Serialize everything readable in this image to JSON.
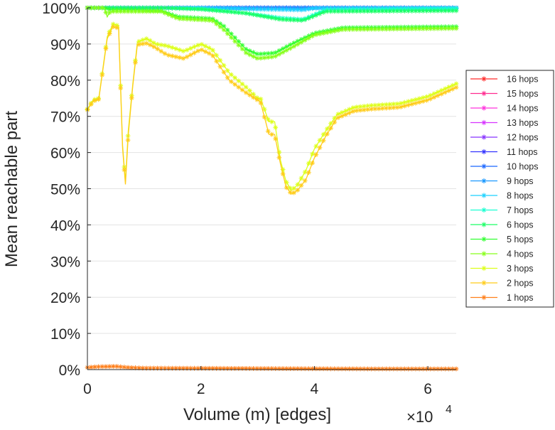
{
  "chart_data": {
    "type": "line",
    "xlabel": "Volume (m) [edges]",
    "ylabel": "Mean reachable part",
    "x_multiplier": {
      "base": "×10",
      "exponent": "4"
    },
    "xlim": [
      0,
      6.5
    ],
    "ylim": [
      0,
      100
    ],
    "x_ticks": [
      0,
      2,
      4,
      6
    ],
    "x_tick_labels": [
      "0",
      "2",
      "4",
      "6"
    ],
    "y_ticks": [
      0,
      10,
      20,
      30,
      40,
      50,
      60,
      70,
      80,
      90,
      100
    ],
    "y_tick_labels": [
      "0%",
      "10%",
      "20%",
      "30%",
      "40%",
      "50%",
      "60%",
      "70%",
      "80%",
      "90%",
      "100%"
    ],
    "grid": "horizontal",
    "legend_position": "right",
    "series": [
      {
        "name": "16 hops",
        "color": "#ff2a2a",
        "x": [
          0,
          6.5
        ],
        "y": [
          100,
          100
        ]
      },
      {
        "name": "15 hops",
        "color": "#ff2a8f",
        "x": [
          0,
          6.5
        ],
        "y": [
          100,
          100
        ]
      },
      {
        "name": "14 hops",
        "color": "#ff33dd",
        "x": [
          0,
          6.5
        ],
        "y": [
          100,
          100
        ]
      },
      {
        "name": "13 hops",
        "color": "#d633ff",
        "x": [
          0,
          6.5
        ],
        "y": [
          100,
          100
        ]
      },
      {
        "name": "12 hops",
        "color": "#8833ff",
        "x": [
          0,
          6.5
        ],
        "y": [
          100,
          100
        ]
      },
      {
        "name": "11 hops",
        "color": "#3333ff",
        "x": [
          0,
          6.5
        ],
        "y": [
          100,
          100
        ]
      },
      {
        "name": "10 hops",
        "color": "#1a66ff",
        "x": [
          0,
          6.5
        ],
        "y": [
          100,
          100
        ]
      },
      {
        "name": "9 hops",
        "color": "#1a99ff",
        "x": [
          0,
          6.5
        ],
        "y": [
          100,
          100
        ]
      },
      {
        "name": "8 hops",
        "color": "#1ad1ff",
        "x": [
          0,
          2,
          3,
          3.8,
          4,
          6.5
        ],
        "y": [
          100,
          100,
          99.6,
          99.4,
          99.9,
          100
        ]
      },
      {
        "name": "7 hops",
        "color": "#1affd1",
        "x": [
          0,
          1.3,
          2,
          2.8,
          3.4,
          3.8,
          4.2,
          6.5
        ],
        "y": [
          100,
          100,
          99.8,
          98.5,
          97.2,
          96.8,
          99.5,
          99.8
        ]
      },
      {
        "name": "6 hops",
        "color": "#1aff66",
        "x": [
          0,
          1.3,
          2,
          2.8,
          3.4,
          3.8,
          4.2,
          6.5
        ],
        "y": [
          100,
          100,
          99.6,
          98.5,
          96.8,
          96.5,
          99,
          99.2
        ]
      },
      {
        "name": "5 hops",
        "color": "#33ff33",
        "x": [
          0,
          0.3,
          0.4,
          1.3,
          1.6,
          2.2,
          2.4,
          2.8,
          3.0,
          3.3,
          3.6,
          4.0,
          4.5,
          6.5
        ],
        "y": [
          100,
          100,
          99.5,
          99.2,
          97.5,
          97,
          95,
          88.5,
          87.2,
          87.5,
          90,
          93,
          94.5,
          94.8
        ]
      },
      {
        "name": "4 hops",
        "color": "#88ff1a",
        "x": [
          0,
          0.3,
          0.35,
          0.4,
          1.3,
          1.6,
          2.2,
          2.4,
          2.8,
          3.0,
          3.3,
          3.6,
          4.0,
          4.5,
          6.5
        ],
        "y": [
          100,
          100,
          97.5,
          99,
          99,
          97,
          96.5,
          94,
          87.5,
          86,
          86.5,
          89,
          92.5,
          94,
          94.3
        ]
      },
      {
        "name": "3 hops",
        "color": "#ddff1a",
        "x": [
          0,
          0.1,
          0.2,
          0.35,
          0.45,
          0.55,
          0.62,
          0.67,
          0.72,
          0.8,
          0.88,
          0.95,
          1.05,
          1.2,
          1.4,
          1.7,
          2.0,
          2.2,
          2.5,
          2.8,
          3.0,
          3.05,
          3.2,
          3.3,
          3.4,
          3.5,
          3.6,
          3.7,
          3.85,
          4.0,
          4.2,
          4.4,
          4.7,
          5.0,
          5.5,
          6.0,
          6.5
        ],
        "y": [
          72,
          74.5,
          75,
          92,
          95.5,
          95,
          62,
          52,
          66,
          79,
          90.5,
          91,
          91.5,
          90,
          89.5,
          88,
          90,
          88.5,
          82,
          78,
          75,
          75,
          68.5,
          68.5,
          58,
          52,
          49.5,
          51,
          55,
          61,
          66,
          70.5,
          72.5,
          73,
          73.5,
          75.5,
          79
        ]
      },
      {
        "name": "2 hops",
        "color": "#ffcc1a",
        "x": [
          0,
          0.1,
          0.2,
          0.35,
          0.45,
          0.55,
          0.62,
          0.67,
          0.72,
          0.8,
          0.88,
          0.95,
          1.05,
          1.2,
          1.4,
          1.7,
          2.0,
          2.2,
          2.5,
          2.8,
          3.0,
          3.05,
          3.2,
          3.3,
          3.4,
          3.5,
          3.6,
          3.7,
          3.85,
          4.0,
          4.2,
          4.4,
          4.7,
          5.0,
          5.5,
          6.0,
          6.5
        ],
        "y": [
          71.8,
          74.2,
          74.7,
          91.5,
          94.8,
          94.4,
          61.2,
          51.2,
          64.8,
          78.5,
          89.8,
          90,
          90.2,
          89,
          87,
          86,
          88.5,
          87,
          80,
          76.5,
          74.5,
          74,
          65,
          65,
          57,
          50.5,
          48.5,
          49.5,
          52.5,
          58.5,
          64.5,
          69.5,
          71.5,
          72,
          72.5,
          74.5,
          78
        ]
      },
      {
        "name": "1 hops",
        "color": "#ff7f1a",
        "x": [
          0,
          0.2,
          0.5,
          0.7,
          1.0,
          2.0,
          3.0,
          4.0,
          5.0,
          6.5
        ],
        "y": [
          0.6,
          0.8,
          0.9,
          0.6,
          0.4,
          0.35,
          0.3,
          0.25,
          0.2,
          0.2
        ]
      }
    ]
  }
}
